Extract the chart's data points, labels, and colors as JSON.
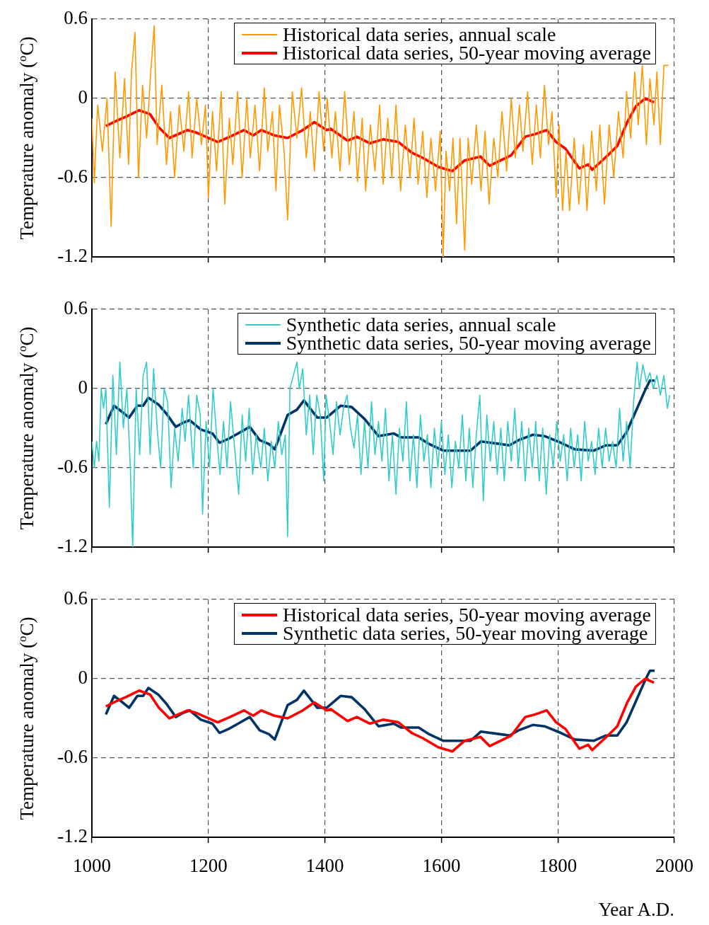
{
  "chart_data": [
    {
      "type": "line",
      "ylabel": "Temperature anomaly ($^{o}$C)",
      "xlim": [
        1000,
        2000
      ],
      "xticks": [
        1000,
        1200,
        1400,
        1600,
        1800,
        2000
      ],
      "ylim": [
        -1.2,
        0.6
      ],
      "yticks": [
        -1.2,
        -0.6,
        0,
        0.6
      ],
      "tick_labels": "y",
      "grid": true,
      "legend": "top right",
      "marker": "none",
      "line_style": "solid",
      "series": [
        {
          "name": "Historical data series, annual scale",
          "color": "#ff9900",
          "x": [
            1000,
            1004,
            1010,
            1018,
            1026,
            1033,
            1040,
            1048,
            1056,
            1063,
            1068,
            1074,
            1080,
            1087,
            1094,
            1101,
            1107,
            1112,
            1120,
            1128,
            1135,
            1142,
            1150,
            1158,
            1166,
            1172,
            1180,
            1188,
            1195,
            1200,
            1207,
            1214,
            1222,
            1228,
            1236,
            1242,
            1250,
            1258,
            1266,
            1272,
            1280,
            1288,
            1296,
            1302,
            1310,
            1316,
            1322,
            1330,
            1336,
            1344,
            1352,
            1360,
            1368,
            1375,
            1382,
            1390,
            1398,
            1404,
            1412,
            1418,
            1426,
            1434,
            1442,
            1450,
            1456,
            1464,
            1470,
            1478,
            1486,
            1494,
            1500,
            1508,
            1515,
            1522,
            1530,
            1538,
            1546,
            1553,
            1560,
            1568,
            1575,
            1582,
            1590,
            1598,
            1603,
            1608,
            1614,
            1620,
            1626,
            1632,
            1640,
            1646,
            1652,
            1660,
            1668,
            1675,
            1682,
            1690,
            1697,
            1704,
            1712,
            1720,
            1727,
            1734,
            1740,
            1748,
            1756,
            1763,
            1770,
            1777,
            1784,
            1790,
            1797,
            1802,
            1808,
            1814,
            1820,
            1828,
            1836,
            1844,
            1850,
            1858,
            1866,
            1872,
            1880,
            1888,
            1896,
            1904,
            1912,
            1918,
            1925,
            1932,
            1938,
            1945,
            1952,
            1958,
            1965,
            1970,
            1976,
            1982,
            1990
          ],
          "values": [
            -0.15,
            -0.64,
            -0.05,
            -0.4,
            0,
            -0.97,
            0.2,
            -0.45,
            0.15,
            -0.5,
            0.2,
            0.5,
            -0.6,
            0.1,
            -0.3,
            0.2,
            0.55,
            -0.35,
            0.1,
            -0.5,
            -0.1,
            -0.6,
            -0.05,
            -0.4,
            0.05,
            -0.45,
            0,
            -0.35,
            -0.05,
            -0.75,
            -0.1,
            -0.55,
            0.05,
            -0.8,
            -0.15,
            -0.5,
            0.05,
            -0.6,
            0,
            -0.45,
            -0.05,
            -0.55,
            0.08,
            -0.4,
            -0.1,
            -0.7,
            -0.05,
            -0.4,
            -0.92,
            0.05,
            -0.3,
            0.08,
            -0.45,
            -0.1,
            -0.55,
            0.05,
            -0.4,
            0,
            -0.45,
            -0.1,
            -0.55,
            0.05,
            -0.5,
            -0.1,
            -0.63,
            -0.15,
            -0.7,
            -0.2,
            -0.55,
            -0.05,
            -0.65,
            -0.15,
            -0.6,
            -0.05,
            -0.7,
            -0.2,
            -0.6,
            -0.15,
            -0.65,
            -0.25,
            -0.75,
            -0.3,
            -0.7,
            -0.25,
            -1.2,
            -0.4,
            -0.7,
            -0.3,
            -0.95,
            -0.3,
            -1.15,
            -0.3,
            -0.65,
            -0.2,
            -0.7,
            -0.25,
            -0.8,
            -0.3,
            -0.6,
            -0.1,
            -0.55,
            0,
            -0.45,
            -0.05,
            -0.4,
            0.05,
            -0.5,
            -0.05,
            -0.45,
            0.1,
            -0.35,
            -0.1,
            -0.75,
            -0.2,
            -0.85,
            -0.4,
            -0.85,
            -0.3,
            -0.8,
            -0.35,
            -0.85,
            -0.25,
            -0.7,
            -0.2,
            -0.8,
            -0.2,
            -0.6,
            -0.1,
            -0.45,
            0.05,
            -0.3,
            0.2,
            -0.2,
            0.25,
            -0.35,
            0.15,
            -0.2,
            0.2,
            -0.35,
            0.25,
            0.25
          ]
        },
        {
          "name": "Historical data series, 50-year moving average",
          "color": "#ff0000",
          "x": [
            1024,
            1042,
            1058,
            1081,
            1100,
            1115,
            1133,
            1164,
            1180,
            1216,
            1237,
            1261,
            1277,
            1291,
            1313,
            1336,
            1362,
            1382,
            1403,
            1410,
            1439,
            1455,
            1477,
            1500,
            1526,
            1549,
            1568,
            1595,
            1619,
            1640,
            1667,
            1683,
            1720,
            1744,
            1761,
            1781,
            1797,
            1813,
            1837,
            1852,
            1859,
            1886,
            1902,
            1919,
            1934,
            1950,
            1965
          ],
          "values": [
            -0.21,
            -0.17,
            -0.14,
            -0.09,
            -0.12,
            -0.22,
            -0.3,
            -0.24,
            -0.26,
            -0.33,
            -0.29,
            -0.24,
            -0.28,
            -0.24,
            -0.28,
            -0.3,
            -0.24,
            -0.18,
            -0.24,
            -0.23,
            -0.32,
            -0.29,
            -0.34,
            -0.31,
            -0.33,
            -0.41,
            -0.45,
            -0.52,
            -0.55,
            -0.47,
            -0.44,
            -0.51,
            -0.43,
            -0.29,
            -0.27,
            -0.24,
            -0.33,
            -0.38,
            -0.53,
            -0.5,
            -0.54,
            -0.43,
            -0.36,
            -0.18,
            -0.06,
            0,
            -0.03
          ]
        }
      ]
    },
    {
      "type": "line",
      "ylabel": "Temperature anomaly ($^{o}$C)",
      "xlim": [
        1000,
        2000
      ],
      "xticks": [
        1000,
        1200,
        1400,
        1600,
        1800,
        2000
      ],
      "ylim": [
        -1.2,
        0.6
      ],
      "yticks": [
        -1.2,
        -0.6,
        0,
        0.6
      ],
      "tick_labels": "y",
      "grid": true,
      "legend": "top right",
      "marker": "none",
      "line_style": "solid",
      "series": [
        {
          "name": "Synthetic data series, annual scale",
          "color": "#33cccc",
          "x": [
            1000,
            1004,
            1008,
            1012,
            1016,
            1020,
            1024,
            1030,
            1036,
            1042,
            1048,
            1054,
            1060,
            1066,
            1070,
            1076,
            1082,
            1088,
            1094,
            1100,
            1106,
            1112,
            1118,
            1124,
            1130,
            1136,
            1142,
            1148,
            1155,
            1160,
            1166,
            1174,
            1180,
            1186,
            1190,
            1196,
            1202,
            1208,
            1214,
            1220,
            1226,
            1232,
            1238,
            1244,
            1252,
            1258,
            1264,
            1270,
            1276,
            1282,
            1290,
            1296,
            1302,
            1308,
            1314,
            1320,
            1326,
            1332,
            1336,
            1340,
            1346,
            1352,
            1356,
            1362,
            1368,
            1374,
            1380,
            1386,
            1392,
            1398,
            1402,
            1408,
            1414,
            1420,
            1426,
            1432,
            1438,
            1444,
            1450,
            1456,
            1462,
            1468,
            1474,
            1480,
            1486,
            1492,
            1498,
            1504,
            1510,
            1516,
            1522,
            1528,
            1534,
            1540,
            1546,
            1552,
            1558,
            1564,
            1570,
            1576,
            1582,
            1588,
            1594,
            1600,
            1606,
            1612,
            1618,
            1624,
            1630,
            1636,
            1642,
            1648,
            1654,
            1660,
            1666,
            1672,
            1678,
            1684,
            1690,
            1696,
            1702,
            1708,
            1714,
            1720,
            1726,
            1732,
            1738,
            1744,
            1750,
            1756,
            1762,
            1768,
            1774,
            1780,
            1786,
            1792,
            1798,
            1804,
            1810,
            1816,
            1822,
            1828,
            1834,
            1840,
            1846,
            1852,
            1858,
            1864,
            1870,
            1876,
            1882,
            1888,
            1894,
            1900,
            1906,
            1912,
            1918,
            1924,
            1930,
            1936,
            1940,
            1946,
            1952,
            1958,
            1964,
            1970,
            1976,
            1982,
            1988,
            1992
          ],
          "values": [
            -0.4,
            -0.6,
            -0.4,
            -0.55,
            0,
            -0.15,
            0,
            -0.9,
            0.1,
            -0.5,
            0.2,
            -0.3,
            0,
            -0.6,
            -1.2,
            0,
            -0.5,
            0.1,
            0.2,
            -0.5,
            0.15,
            -0.3,
            -0.6,
            0,
            -0.1,
            -0.75,
            -0.3,
            -0.55,
            -0.15,
            -0.4,
            -0.05,
            -0.6,
            -0.05,
            -0.2,
            -0.95,
            -0.25,
            -0.6,
            0,
            -0.35,
            -0.65,
            -0.25,
            -0.6,
            -0.1,
            -0.4,
            -0.8,
            -0.2,
            -0.55,
            -0.15,
            -0.65,
            -0.35,
            -0.6,
            -0.3,
            -0.7,
            -0.4,
            -0.6,
            -0.25,
            -0.5,
            -0.35,
            -1.12,
            0,
            0.1,
            0.2,
            0,
            0.15,
            -0.35,
            -0.05,
            -0.5,
            -0.05,
            -0.2,
            -0.7,
            -0.05,
            -0.25,
            -0.5,
            -0.1,
            -0.35,
            -0.15,
            -0.05,
            -0.3,
            -0.45,
            -0.2,
            -0.65,
            -0.25,
            -0.6,
            -0.1,
            -0.5,
            -0.25,
            -0.55,
            -0.15,
            -0.7,
            -0.35,
            -0.8,
            -0.3,
            -0.55,
            -0.1,
            -0.7,
            -0.35,
            -0.75,
            -0.2,
            -0.55,
            -0.35,
            -0.75,
            -0.3,
            -0.6,
            -0.25,
            -0.65,
            -0.35,
            -0.75,
            -0.4,
            -0.6,
            -0.2,
            -0.7,
            -0.3,
            -0.75,
            -0.35,
            -0.05,
            -0.85,
            -0.2,
            -0.55,
            -0.25,
            -0.65,
            -0.3,
            -0.7,
            -0.25,
            -0.55,
            -0.15,
            -0.6,
            -0.25,
            -0.7,
            -0.3,
            -0.6,
            -0.25,
            -0.7,
            -0.3,
            -0.8,
            -0.35,
            -0.6,
            -0.25,
            -0.55,
            -0.35,
            -0.7,
            -0.3,
            -0.6,
            -0.35,
            -0.7,
            -0.25,
            -0.55,
            -0.4,
            -0.65,
            -0.3,
            -0.6,
            -0.3,
            -0.55,
            -0.4,
            -0.6,
            -0.15,
            -0.55,
            -0.25,
            -0.6,
            -0.1,
            0.2,
            0,
            0.18,
            0.05,
            0.12,
            0,
            0.1,
            -0.05,
            0.1,
            -0.15,
            -0.05
          ]
        },
        {
          "name": "Synthetic data series, 50-year moving average",
          "color": "#003366",
          "x": [
            1024,
            1038,
            1050,
            1064,
            1078,
            1088,
            1097,
            1114,
            1128,
            1144,
            1156,
            1168,
            1187,
            1207,
            1219,
            1235,
            1251,
            1271,
            1288,
            1304,
            1314,
            1336,
            1352,
            1364,
            1387,
            1403,
            1427,
            1446,
            1468,
            1492,
            1518,
            1531,
            1561,
            1579,
            1603,
            1620,
            1650,
            1668,
            1701,
            1717,
            1733,
            1757,
            1777,
            1805,
            1829,
            1862,
            1882,
            1902,
            1918,
            1934,
            1950,
            1958,
            1966
          ],
          "values": [
            -0.27,
            -0.13,
            -0.17,
            -0.22,
            -0.13,
            -0.13,
            -0.07,
            -0.12,
            -0.19,
            -0.29,
            -0.26,
            -0.24,
            -0.31,
            -0.34,
            -0.41,
            -0.38,
            -0.34,
            -0.29,
            -0.39,
            -0.42,
            -0.46,
            -0.2,
            -0.16,
            -0.09,
            -0.22,
            -0.22,
            -0.13,
            -0.14,
            -0.23,
            -0.36,
            -0.34,
            -0.37,
            -0.37,
            -0.42,
            -0.47,
            -0.47,
            -0.47,
            -0.4,
            -0.42,
            -0.43,
            -0.39,
            -0.35,
            -0.36,
            -0.41,
            -0.46,
            -0.47,
            -0.43,
            -0.43,
            -0.33,
            -0.17,
            -0.01,
            0.06,
            0.06
          ]
        }
      ]
    },
    {
      "type": "line",
      "ylabel": "Temperature anomaly ($^{o}$C)",
      "xlabel": "Year A.D.",
      "xlim": [
        1000,
        2000
      ],
      "xticks": [
        1000,
        1200,
        1400,
        1600,
        1800,
        2000
      ],
      "ylim": [
        -1.2,
        0.6
      ],
      "yticks": [
        -1.2,
        -0.6,
        0,
        0.6
      ],
      "grid": true,
      "legend": "top right",
      "marker": "none",
      "line_style": "solid",
      "series": [
        {
          "name": "Historical data series, 50-year moving average",
          "color": "#ff0000",
          "x": [
            1024,
            1042,
            1058,
            1081,
            1100,
            1115,
            1133,
            1164,
            1180,
            1216,
            1237,
            1261,
            1277,
            1291,
            1313,
            1336,
            1362,
            1382,
            1403,
            1410,
            1439,
            1455,
            1477,
            1500,
            1526,
            1549,
            1568,
            1595,
            1619,
            1640,
            1667,
            1683,
            1720,
            1744,
            1761,
            1781,
            1797,
            1813,
            1837,
            1852,
            1859,
            1886,
            1902,
            1919,
            1934,
            1950,
            1965
          ],
          "values": [
            -0.21,
            -0.17,
            -0.14,
            -0.09,
            -0.12,
            -0.22,
            -0.3,
            -0.24,
            -0.26,
            -0.33,
            -0.29,
            -0.24,
            -0.28,
            -0.24,
            -0.28,
            -0.3,
            -0.24,
            -0.18,
            -0.24,
            -0.23,
            -0.32,
            -0.29,
            -0.34,
            -0.31,
            -0.33,
            -0.41,
            -0.45,
            -0.52,
            -0.55,
            -0.47,
            -0.44,
            -0.51,
            -0.43,
            -0.29,
            -0.27,
            -0.24,
            -0.33,
            -0.38,
            -0.53,
            -0.5,
            -0.54,
            -0.43,
            -0.36,
            -0.18,
            -0.06,
            0,
            -0.03
          ]
        },
        {
          "name": "Synthetic data series, 50-year moving average",
          "color": "#003366",
          "x": [
            1024,
            1038,
            1050,
            1064,
            1078,
            1088,
            1097,
            1114,
            1128,
            1144,
            1156,
            1168,
            1187,
            1207,
            1219,
            1235,
            1251,
            1271,
            1288,
            1304,
            1314,
            1336,
            1352,
            1364,
            1387,
            1403,
            1427,
            1446,
            1468,
            1492,
            1518,
            1531,
            1561,
            1579,
            1603,
            1620,
            1650,
            1668,
            1701,
            1717,
            1733,
            1757,
            1777,
            1805,
            1829,
            1862,
            1882,
            1902,
            1918,
            1934,
            1950,
            1958,
            1966
          ],
          "values": [
            -0.27,
            -0.13,
            -0.17,
            -0.22,
            -0.13,
            -0.13,
            -0.07,
            -0.12,
            -0.19,
            -0.29,
            -0.26,
            -0.24,
            -0.31,
            -0.34,
            -0.41,
            -0.38,
            -0.34,
            -0.29,
            -0.39,
            -0.42,
            -0.46,
            -0.2,
            -0.16,
            -0.09,
            -0.22,
            -0.22,
            -0.13,
            -0.14,
            -0.23,
            -0.36,
            -0.34,
            -0.37,
            -0.37,
            -0.42,
            -0.47,
            -0.47,
            -0.47,
            -0.4,
            -0.42,
            -0.43,
            -0.39,
            -0.35,
            -0.36,
            -0.41,
            -0.46,
            -0.47,
            -0.43,
            -0.43,
            -0.33,
            -0.17,
            -0.01,
            0.06,
            0.06
          ]
        }
      ]
    }
  ]
}
